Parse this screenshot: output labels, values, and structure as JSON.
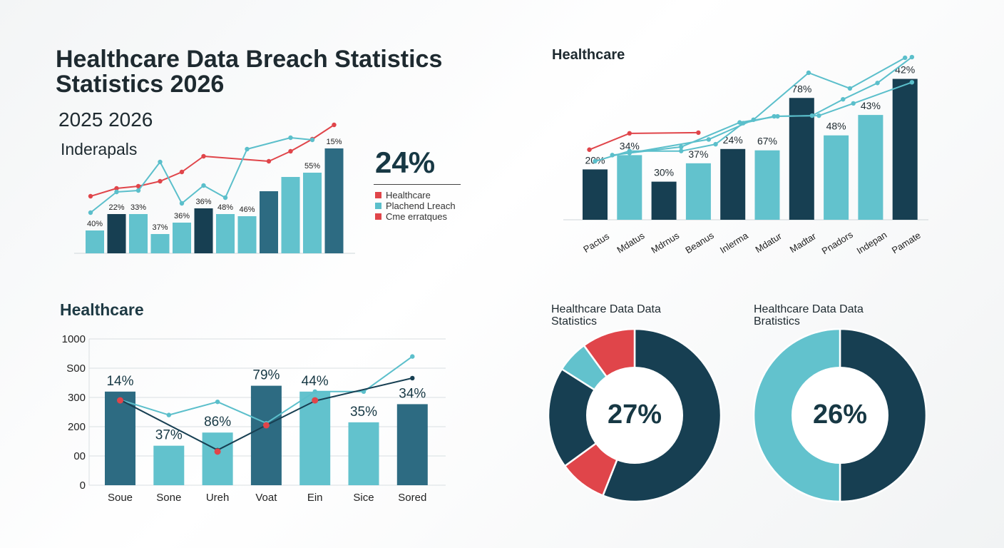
{
  "title_lines": [
    "Healthcare Data Breach Statistics",
    "Statistics 2026"
  ],
  "years_label": "2025 2026",
  "subtitle": "Inderapals",
  "top_right_title": "Healthcare",
  "bottom_left_title": "Healthcare",
  "highlight": {
    "value": "24%",
    "legend": [
      {
        "label": "Healthcare",
        "color": "#e0454a"
      },
      {
        "label": "Plachend Lreach",
        "color": "#5bbfcb"
      },
      {
        "label": "Cme erratques",
        "color": "#e0454a"
      }
    ]
  },
  "colors": {
    "dark": "#173f52",
    "mid": "#2d6b82",
    "light": "#62c2cd",
    "red": "#e0454a",
    "line": "#5bbfcb"
  },
  "chart_data": [
    {
      "type": "bar",
      "bars": [
        {
          "value": 32,
          "label": "40%",
          "tone": "light"
        },
        {
          "value": 55,
          "label": "22%",
          "tone": "dark"
        },
        {
          "value": 55,
          "label": "33%",
          "tone": "light"
        },
        {
          "value": 27,
          "label": "37%",
          "tone": "light"
        },
        {
          "value": 43,
          "label": "36%",
          "tone": "light"
        },
        {
          "value": 63,
          "label": "36%",
          "tone": "dark"
        },
        {
          "value": 55,
          "label": "48%",
          "tone": "light"
        },
        {
          "value": 52,
          "label": "46%",
          "tone": "light"
        },
        {
          "value": 87,
          "label": "",
          "tone": "mid"
        },
        {
          "value": 107,
          "label": "",
          "tone": "light"
        },
        {
          "value": 113,
          "label": "55%",
          "tone": "light"
        },
        {
          "value": 147,
          "label": "15%",
          "tone": "mid"
        }
      ],
      "ylim": [
        0,
        190
      ],
      "series": [
        {
          "color": "red",
          "values": [
            80,
            91,
            94,
            101,
            114,
            136,
            null,
            null,
            129,
            143,
            160,
            180
          ]
        },
        {
          "color": "line",
          "values": [
            57,
            86,
            88,
            128,
            70,
            95,
            78,
            146,
            null,
            162,
            159,
            null
          ]
        }
      ]
    },
    {
      "type": "bar",
      "bars": [
        {
          "value": 74,
          "label": "20%",
          "tone": "dark",
          "category": "Pactus"
        },
        {
          "value": 95,
          "label": "34%",
          "tone": "light",
          "category": "Mdatus"
        },
        {
          "value": 56,
          "label": "30%",
          "tone": "dark",
          "category": "Mdrnus"
        },
        {
          "value": 83,
          "label": "37%",
          "tone": "light",
          "category": "Beanus"
        },
        {
          "value": 104,
          "label": "24%",
          "tone": "dark",
          "category": "Inlerma"
        },
        {
          "value": 102,
          "label": "67%",
          "tone": "light",
          "category": "Mdatur"
        },
        {
          "value": 179,
          "label": "78%",
          "tone": "dark",
          "category": "Madtar"
        },
        {
          "value": 124,
          "label": "48%",
          "tone": "light",
          "category": "Pnadors"
        },
        {
          "value": 154,
          "label": "43%",
          "tone": "light",
          "category": "Indepan"
        },
        {
          "value": 207,
          "label": "42%",
          "tone": "dark",
          "category": "Pamate"
        }
      ],
      "ylim": [
        0,
        260
      ],
      "series": [
        {
          "color": "red",
          "values": [
            103,
            127,
            null,
            128
          ]
        },
        {
          "color": "line",
          "values": [
            86,
            101,
            101,
            111,
            142,
            152,
            153,
            177,
            201,
            239
          ],
          "points": [
            [
              0,
              86
            ],
            [
              1,
              101
            ],
            [
              2.5,
              101
            ],
            [
              3.5,
              111
            ],
            [
              4.3,
              142
            ],
            [
              5.2,
              152
            ],
            [
              6.3,
              153
            ],
            [
              7.2,
              177
            ],
            [
              8.2,
              201
            ],
            [
              9.2,
              239
            ]
          ]
        },
        {
          "color": "line",
          "values": [
            95,
            null,
            107,
            null,
            143,
            152,
            153,
            171,
            null,
            202
          ],
          "points": [
            [
              0.5,
              95
            ],
            [
              2.5,
              107
            ],
            [
              4.2,
              143
            ],
            [
              5.3,
              152
            ],
            [
              6.5,
              153
            ],
            [
              7.5,
              171
            ],
            [
              9.2,
              202
            ]
          ]
        },
        {
          "color": "line",
          "values": [
            98,
            118,
            147,
            216,
            193,
            238
          ],
          "points": [
            [
              1,
              98
            ],
            [
              3.3,
              118
            ],
            [
              4.6,
              147
            ],
            [
              6.2,
              216
            ],
            [
              7.4,
              193
            ],
            [
              9.0,
              238
            ]
          ]
        }
      ]
    },
    {
      "type": "bar",
      "categories": [
        "Soue",
        "Sone",
        "Ureh",
        "Voat",
        "Ein",
        "Sice",
        "Sored"
      ],
      "ytick_labels": [
        "1000",
        "S00",
        "300",
        "200",
        "00",
        "0"
      ],
      "values": [
        320,
        135,
        180,
        340,
        320,
        215,
        277
      ],
      "bar_labels": [
        "14%",
        "37%",
        "86%",
        "79%",
        "44%",
        "35%",
        "34%"
      ],
      "tones": [
        "mid",
        "light",
        "light",
        "mid",
        "light",
        "light",
        "mid"
      ],
      "ylim": [
        0,
        500
      ],
      "series": [
        {
          "color": "line",
          "values": [
            292,
            240,
            285,
            212,
            320,
            320,
            440
          ]
        },
        {
          "color": "dark",
          "values": [
            292,
            null,
            120,
            205,
            288,
            null,
            366
          ]
        },
        {
          "color": "red",
          "values": [
            290,
            null,
            115,
            205,
            290,
            null,
            null
          ]
        }
      ]
    },
    {
      "type": "pie",
      "title_lines": [
        "Healthcare Data Data",
        "Statistics"
      ],
      "center_label": "27%",
      "slices": [
        {
          "value": 56,
          "color": "dark"
        },
        {
          "value": 9,
          "color": "red"
        },
        {
          "value": 19,
          "color": "dark"
        },
        {
          "value": 6,
          "color": "light"
        },
        {
          "value": 10,
          "color": "red"
        }
      ]
    },
    {
      "type": "pie",
      "title_lines": [
        "Healthcare Data Data",
        "Bratistics"
      ],
      "center_label": "26%",
      "slices": [
        {
          "value": 50,
          "color": "dark"
        },
        {
          "value": 50,
          "color": "light"
        }
      ]
    }
  ]
}
